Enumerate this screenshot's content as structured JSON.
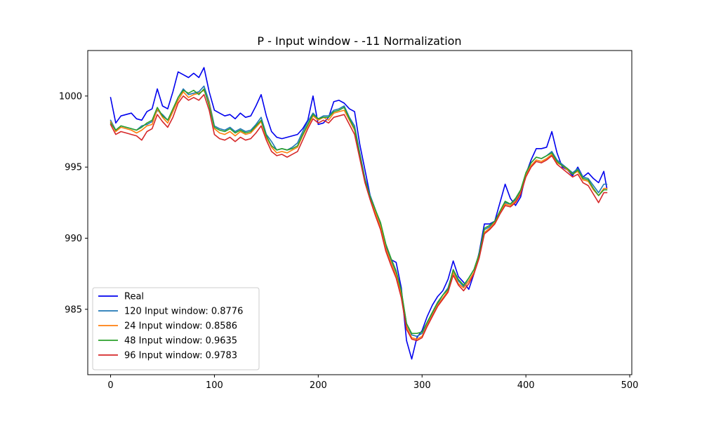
{
  "chart_data": {
    "type": "line",
    "title": "P - Input window - -11 Normalization",
    "xlabel": "",
    "ylabel": "",
    "xlim": [
      -22,
      502
    ],
    "ylim": [
      980.4,
      1003.2
    ],
    "xticks": [
      0,
      100,
      200,
      300,
      400,
      500
    ],
    "yticks": [
      985,
      990,
      995,
      1000
    ],
    "grid": false,
    "legend_position": "lower-left",
    "series": [
      {
        "name": "Real",
        "color": "#0000ee",
        "x": [
          0,
          5,
          10,
          15,
          20,
          25,
          30,
          35,
          40,
          45,
          50,
          55,
          60,
          65,
          70,
          75,
          80,
          85,
          90,
          95,
          100,
          105,
          110,
          115,
          120,
          125,
          130,
          135,
          140,
          145,
          150,
          155,
          160,
          165,
          170,
          175,
          180,
          185,
          190,
          195,
          200,
          205,
          210,
          215,
          220,
          225,
          230,
          235,
          240,
          245,
          250,
          255,
          260,
          265,
          270,
          275,
          280,
          285,
          290,
          295,
          300,
          305,
          310,
          315,
          320,
          325,
          330,
          335,
          340,
          345,
          350,
          355,
          360,
          365,
          370,
          375,
          380,
          385,
          390,
          395,
          400,
          405,
          410,
          415,
          420,
          425,
          430,
          435,
          440,
          445,
          450,
          455,
          460,
          465,
          470,
          475,
          478
        ],
        "values": [
          999.9,
          998.1,
          998.6,
          998.7,
          998.8,
          998.4,
          998.3,
          998.9,
          999.1,
          1000.5,
          999.3,
          999.1,
          1000.3,
          1001.7,
          1001.5,
          1001.3,
          1001.6,
          1001.3,
          1002.0,
          1000.3,
          999.0,
          998.8,
          998.6,
          998.7,
          998.4,
          998.8,
          998.5,
          998.6,
          999.3,
          1000.1,
          998.6,
          997.5,
          997.1,
          997.0,
          997.1,
          997.2,
          997.3,
          997.7,
          998.3,
          1000.0,
          998.0,
          998.1,
          998.5,
          999.6,
          999.7,
          999.5,
          999.1,
          998.9,
          996.6,
          994.8,
          993.0,
          992.0,
          990.9,
          989.5,
          988.5,
          988.3,
          986.5,
          982.8,
          981.5,
          983.0,
          983.5,
          984.5,
          985.3,
          985.9,
          986.3,
          987.1,
          988.4,
          987.3,
          986.9,
          986.4,
          987.5,
          989.0,
          991.0,
          991.0,
          991.2,
          992.5,
          993.8,
          992.8,
          992.3,
          992.9,
          994.5,
          995.5,
          996.3,
          996.3,
          996.4,
          997.5,
          996.0,
          995.0,
          994.8,
          994.4,
          995.0,
          994.3,
          994.6,
          994.2,
          993.9,
          994.7,
          993.5
        ]
      },
      {
        "name": "120 Input window: 0.8776",
        "color": "#1f77b4",
        "x": [
          0,
          5,
          10,
          15,
          20,
          25,
          30,
          35,
          40,
          45,
          50,
          55,
          60,
          65,
          70,
          75,
          80,
          85,
          90,
          95,
          100,
          105,
          110,
          115,
          120,
          125,
          130,
          135,
          140,
          145,
          150,
          155,
          160,
          165,
          170,
          175,
          180,
          185,
          190,
          195,
          200,
          205,
          210,
          215,
          220,
          225,
          230,
          235,
          240,
          245,
          250,
          255,
          260,
          265,
          270,
          275,
          280,
          285,
          290,
          295,
          300,
          305,
          310,
          315,
          320,
          325,
          330,
          335,
          340,
          345,
          350,
          355,
          360,
          365,
          370,
          375,
          380,
          385,
          390,
          395,
          400,
          405,
          410,
          415,
          420,
          425,
          430,
          435,
          440,
          445,
          450,
          455,
          460,
          465,
          470,
          475,
          478
        ],
        "values": [
          998.3,
          997.6,
          997.9,
          997.8,
          997.7,
          997.6,
          997.9,
          998.0,
          998.2,
          999.0,
          998.7,
          998.3,
          999.0,
          999.9,
          1000.5,
          1000.1,
          1000.2,
          1000.3,
          1000.7,
          999.6,
          997.9,
          997.7,
          997.6,
          997.8,
          997.5,
          997.7,
          997.5,
          997.6,
          998.0,
          998.5,
          997.3,
          996.8,
          996.2,
          996.3,
          996.2,
          996.4,
          996.7,
          997.5,
          998.2,
          998.8,
          998.4,
          998.6,
          998.6,
          999.0,
          999.1,
          999.3,
          998.5,
          997.9,
          996.0,
          994.2,
          993.0,
          992.0,
          991.0,
          989.6,
          988.5,
          987.6,
          986.2,
          984.0,
          983.2,
          983.1,
          983.3,
          984.0,
          984.7,
          985.4,
          986.0,
          986.5,
          987.7,
          987.0,
          986.6,
          987.2,
          987.8,
          988.9,
          990.6,
          990.8,
          991.2,
          991.9,
          992.5,
          992.4,
          992.7,
          993.3,
          994.5,
          995.3,
          995.7,
          995.6,
          995.8,
          996.1,
          995.5,
          995.2,
          994.9,
          994.6,
          994.9,
          994.3,
          994.2,
          993.7,
          993.2,
          993.8,
          993.8
        ]
      },
      {
        "name": "24 Input window: 0.8586",
        "color": "#ff7f0e",
        "x": [
          0,
          5,
          10,
          15,
          20,
          25,
          30,
          35,
          40,
          45,
          50,
          55,
          60,
          65,
          70,
          75,
          80,
          85,
          90,
          95,
          100,
          105,
          110,
          115,
          120,
          125,
          130,
          135,
          140,
          145,
          150,
          155,
          160,
          165,
          170,
          175,
          180,
          185,
          190,
          195,
          200,
          205,
          210,
          215,
          220,
          225,
          230,
          235,
          240,
          245,
          250,
          255,
          260,
          265,
          270,
          275,
          280,
          285,
          290,
          295,
          300,
          305,
          310,
          315,
          320,
          325,
          330,
          335,
          340,
          345,
          350,
          355,
          360,
          365,
          370,
          375,
          380,
          385,
          390,
          395,
          400,
          405,
          410,
          415,
          420,
          425,
          430,
          435,
          440,
          445,
          450,
          455,
          460,
          465,
          470,
          475,
          478
        ],
        "values": [
          998.2,
          997.5,
          997.8,
          997.7,
          997.6,
          997.4,
          997.6,
          997.9,
          998.0,
          999.1,
          998.5,
          998.1,
          998.9,
          999.7,
          1000.3,
          999.9,
          1000.1,
          1000.2,
          1000.4,
          999.5,
          997.7,
          997.4,
          997.3,
          997.5,
          997.2,
          997.5,
          997.3,
          997.4,
          997.8,
          998.2,
          997.1,
          996.4,
          996.0,
          996.1,
          996.0,
          996.2,
          996.4,
          997.2,
          997.9,
          998.6,
          998.3,
          998.5,
          998.3,
          998.8,
          998.9,
          999.0,
          998.3,
          997.6,
          995.7,
          994.0,
          992.8,
          991.8,
          990.8,
          989.3,
          988.3,
          987.4,
          986.0,
          983.8,
          983.0,
          982.9,
          983.1,
          983.9,
          984.6,
          985.3,
          985.8,
          986.3,
          987.6,
          986.8,
          986.5,
          987.0,
          987.6,
          988.7,
          990.4,
          990.7,
          991.1,
          991.8,
          992.4,
          992.3,
          992.6,
          993.2,
          994.4,
          995.1,
          995.5,
          995.4,
          995.6,
          995.9,
          995.3,
          995.1,
          994.8,
          994.5,
          994.7,
          994.1,
          994.0,
          993.4,
          993.0,
          993.5,
          993.5
        ]
      },
      {
        "name": "48 Input window: 0.9635",
        "color": "#2ca02c",
        "x": [
          0,
          5,
          10,
          15,
          20,
          25,
          30,
          35,
          40,
          45,
          50,
          55,
          60,
          65,
          70,
          75,
          80,
          85,
          90,
          95,
          100,
          105,
          110,
          115,
          120,
          125,
          130,
          135,
          140,
          145,
          150,
          155,
          160,
          165,
          170,
          175,
          180,
          185,
          190,
          195,
          200,
          205,
          210,
          215,
          220,
          225,
          230,
          235,
          240,
          245,
          250,
          255,
          260,
          265,
          270,
          275,
          280,
          285,
          290,
          295,
          300,
          305,
          310,
          315,
          320,
          325,
          330,
          335,
          340,
          345,
          350,
          355,
          360,
          365,
          370,
          375,
          380,
          385,
          390,
          395,
          400,
          405,
          410,
          415,
          420,
          425,
          430,
          435,
          440,
          445,
          450,
          455,
          460,
          465,
          470,
          475,
          478
        ],
        "values": [
          998.1,
          997.6,
          997.9,
          997.8,
          997.7,
          997.6,
          997.8,
          998.1,
          998.3,
          999.2,
          998.6,
          998.3,
          999.1,
          999.9,
          1000.4,
          1000.2,
          1000.4,
          1000.1,
          1000.5,
          999.3,
          997.8,
          997.6,
          997.5,
          997.7,
          997.4,
          997.6,
          997.4,
          997.5,
          997.9,
          998.3,
          997.2,
          996.5,
          996.2,
          996.3,
          996.2,
          996.3,
          996.5,
          997.3,
          998.0,
          998.7,
          998.4,
          998.5,
          998.5,
          998.9,
          999.0,
          999.2,
          998.4,
          997.7,
          995.9,
          994.1,
          992.9,
          992.0,
          991.1,
          989.6,
          988.6,
          987.7,
          986.3,
          984.0,
          983.3,
          983.3,
          983.4,
          984.1,
          984.8,
          985.5,
          986.0,
          986.4,
          987.8,
          987.1,
          986.7,
          987.2,
          987.8,
          988.9,
          990.7,
          990.9,
          991.2,
          991.9,
          992.6,
          992.4,
          992.8,
          993.4,
          994.6,
          995.3,
          995.7,
          995.6,
          995.8,
          996.0,
          995.4,
          995.1,
          994.9,
          994.5,
          994.8,
          994.2,
          994.1,
          993.5,
          993.0,
          993.4,
          993.4
        ]
      },
      {
        "name": "96 Input window: 0.9783",
        "color": "#d62728",
        "x": [
          0,
          5,
          10,
          15,
          20,
          25,
          30,
          35,
          40,
          45,
          50,
          55,
          60,
          65,
          70,
          75,
          80,
          85,
          90,
          95,
          100,
          105,
          110,
          115,
          120,
          125,
          130,
          135,
          140,
          145,
          150,
          155,
          160,
          165,
          170,
          175,
          180,
          185,
          190,
          195,
          200,
          205,
          210,
          215,
          220,
          225,
          230,
          235,
          240,
          245,
          250,
          255,
          260,
          265,
          270,
          275,
          280,
          285,
          290,
          295,
          300,
          305,
          310,
          315,
          320,
          325,
          330,
          335,
          340,
          345,
          350,
          355,
          360,
          365,
          370,
          375,
          380,
          385,
          390,
          395,
          400,
          405,
          410,
          415,
          420,
          425,
          430,
          435,
          440,
          445,
          450,
          455,
          460,
          465,
          470,
          475,
          478
        ],
        "values": [
          998.0,
          997.3,
          997.5,
          997.4,
          997.3,
          997.2,
          996.9,
          997.5,
          997.7,
          998.7,
          998.2,
          997.8,
          998.5,
          999.5,
          1000.0,
          999.7,
          999.9,
          999.7,
          1000.1,
          999.0,
          997.3,
          997.0,
          996.9,
          997.1,
          996.8,
          997.1,
          996.9,
          997.0,
          997.4,
          997.9,
          996.9,
          996.1,
          995.8,
          995.9,
          995.7,
          995.9,
          996.1,
          996.9,
          997.7,
          998.4,
          998.1,
          998.3,
          998.1,
          998.5,
          998.6,
          998.7,
          998.0,
          997.3,
          995.6,
          993.9,
          992.7,
          991.6,
          990.6,
          989.1,
          988.1,
          987.2,
          985.8,
          983.6,
          982.9,
          982.8,
          983.0,
          983.8,
          984.5,
          985.2,
          985.7,
          986.2,
          987.4,
          986.7,
          986.3,
          986.8,
          987.5,
          988.6,
          990.3,
          990.6,
          991.0,
          991.7,
          992.3,
          992.2,
          992.5,
          993.1,
          994.3,
          995.0,
          995.4,
          995.3,
          995.5,
          995.8,
          995.2,
          994.9,
          994.6,
          994.3,
          994.5,
          993.9,
          993.7,
          993.1,
          992.5,
          993.2,
          993.2
        ]
      }
    ]
  }
}
